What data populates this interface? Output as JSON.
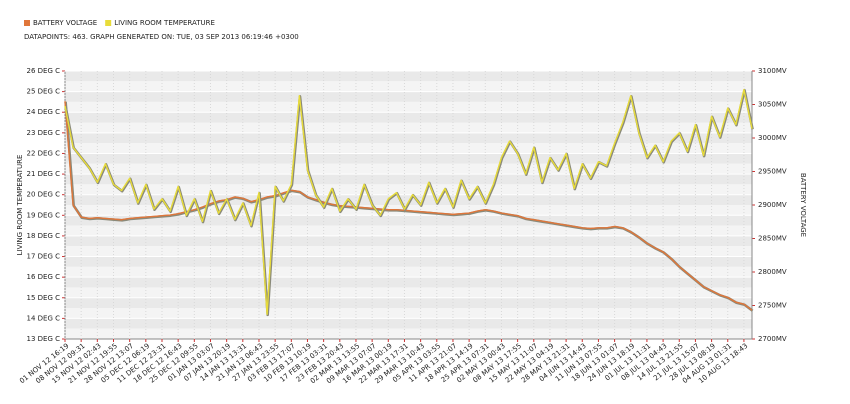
{
  "chart_data": {
    "type": "line",
    "subtitle": "DATAPOINTS: 463. GRAPH GENERATED ON: TUE, 03 SEP 2013 06:19:46 +0300",
    "y_label": "LIVING ROOM TEMPERATURE",
    "y2_label": "BATTERY VOLTAGE",
    "legend": "top-left",
    "grid": true,
    "categories": [
      "01 NOV 12 16:19",
      null,
      "08 NOV 12 09:31",
      null,
      "15 NOV 12 02:43",
      null,
      "21 NOV 12 19:55",
      null,
      "28 NOV 12 13:07",
      null,
      "05 DEC 12 06:19",
      null,
      "11 DEC 12 23:31",
      null,
      "18 DEC 12 16:43",
      null,
      "25 DEC 12 09:55",
      null,
      "01 JAN 13 03:07",
      null,
      "07 JAN 13 20:19",
      null,
      "14 JAN 13 13:31",
      null,
      "21 JAN 13 06:43",
      null,
      "27 JAN 13 23:55",
      null,
      "03 FEB 13 17:07",
      null,
      "10 FEB 13 10:19",
      null,
      "17 FEB 13 03:31",
      null,
      "23 FEB 13 20:43",
      null,
      "02 MAR 13 13:55",
      null,
      "09 MAR 13 07:07",
      null,
      "16 MAR 13 00:19",
      null,
      "22 MAR 13 17:31",
      null,
      "29 MAR 13 10:43",
      null,
      "05 APR 13 03:55",
      null,
      "11 APR 13 21:07",
      null,
      "18 APR 13 14:19",
      null,
      "25 APR 13 07:31",
      null,
      "02 MAY 13 00:43",
      null,
      "08 MAY 13 17:55",
      null,
      "15 MAY 13 11:07",
      null,
      "22 MAY 13 04:19",
      null,
      "28 MAY 13 21:31",
      null,
      "04 JUN 13 14:43",
      null,
      "11 JUN 13 07:55",
      null,
      "18 JUN 13 01:07",
      null,
      "24 JUN 13 18:19",
      null,
      "01 JUL 13 11:31",
      null,
      "08 JUL 13 04:43",
      null,
      "14 JUL 13 21:55",
      null,
      "21 JUL 13 15:07",
      null,
      "28 JUL 13 08:19",
      null,
      "04 AUG 13 01:31",
      null,
      "10 AUG 13 18:43",
      null
    ],
    "ylim": [
      13,
      26
    ],
    "yticks": [
      {
        "value": 13,
        "label": "13 DEG C"
      },
      {
        "value": 14,
        "label": "14 DEG C"
      },
      {
        "value": 15,
        "label": "15 DEG C"
      },
      {
        "value": 16,
        "label": "16 DEG C"
      },
      {
        "value": 17,
        "label": "17 DEG C"
      },
      {
        "value": 18,
        "label": "18 DEG C"
      },
      {
        "value": 19,
        "label": "19 DEG C"
      },
      {
        "value": 20,
        "label": "20 DEG C"
      },
      {
        "value": 21,
        "label": "21 DEG C"
      },
      {
        "value": 22,
        "label": "22 DEG C"
      },
      {
        "value": 23,
        "label": "23 DEG C"
      },
      {
        "value": 24,
        "label": "24 DEG C"
      },
      {
        "value": 25,
        "label": "25 DEG C"
      },
      {
        "value": 26,
        "label": "26 DEG C"
      }
    ],
    "y2lim": [
      2700,
      3100
    ],
    "y2ticks": [
      {
        "value": 2700,
        "label": "2700MV"
      },
      {
        "value": 2750,
        "label": "2750MV"
      },
      {
        "value": 2800,
        "label": "2800MV"
      },
      {
        "value": 2850,
        "label": "2850MV"
      },
      {
        "value": 2900,
        "label": "2900MV"
      },
      {
        "value": 2950,
        "label": "2950MV"
      },
      {
        "value": 3000,
        "label": "3000MV"
      },
      {
        "value": 3050,
        "label": "3050MV"
      },
      {
        "value": 3100,
        "label": "3100MV"
      }
    ],
    "series": [
      {
        "name": "BATTERY VOLTAGE",
        "color": "#e0763a",
        "axis": "y2",
        "values": [
          3055,
          2900,
          2882,
          2880,
          2881,
          2880,
          2879,
          2878,
          2880,
          2881,
          2882,
          2883,
          2884,
          2885,
          2887,
          2890,
          2893,
          2897,
          2902,
          2906,
          2908,
          2912,
          2910,
          2905,
          2908,
          2912,
          2914,
          2918,
          2922,
          2920,
          2912,
          2908,
          2904,
          2901,
          2899,
          2898,
          2897,
          2896,
          2895,
          2894,
          2893,
          2893,
          2892,
          2891,
          2890,
          2889,
          2888,
          2887,
          2886,
          2887,
          2888,
          2891,
          2893,
          2891,
          2888,
          2886,
          2884,
          2880,
          2878,
          2876,
          2874,
          2872,
          2870,
          2868,
          2866,
          2865,
          2866,
          2866,
          2868,
          2866,
          2860,
          2852,
          2843,
          2836,
          2830,
          2820,
          2808,
          2798,
          2788,
          2778,
          2772,
          2766,
          2762,
          2755,
          2752,
          2743
        ]
      },
      {
        "name": "LIVING ROOM TEMPERATURE",
        "color": "#e8dc3a",
        "values": [
          24.3,
          22.3,
          21.8,
          21.3,
          20.6,
          21.5,
          20.5,
          20.2,
          20.8,
          19.6,
          20.5,
          19.3,
          19.8,
          19.2,
          20.4,
          19.0,
          19.8,
          18.7,
          20.2,
          19.1,
          19.8,
          18.8,
          19.6,
          18.5,
          20.1,
          14.2,
          20.4,
          19.7,
          20.5,
          24.8,
          21.2,
          20.0,
          19.4,
          20.3,
          19.2,
          19.8,
          19.3,
          20.5,
          19.5,
          19.0,
          19.8,
          20.1,
          19.3,
          20.0,
          19.5,
          20.6,
          19.6,
          20.3,
          19.4,
          20.7,
          19.8,
          20.4,
          19.6,
          20.5,
          21.8,
          22.6,
          22.0,
          21.0,
          22.3,
          20.6,
          21.8,
          21.2,
          22.0,
          20.3,
          21.5,
          20.8,
          21.6,
          21.4,
          22.5,
          23.5,
          24.8,
          23.0,
          21.8,
          22.4,
          21.6,
          22.6,
          23.0,
          22.1,
          23.4,
          21.9,
          23.8,
          22.8,
          24.2,
          23.4,
          25.1,
          23.2
        ]
      }
    ]
  }
}
